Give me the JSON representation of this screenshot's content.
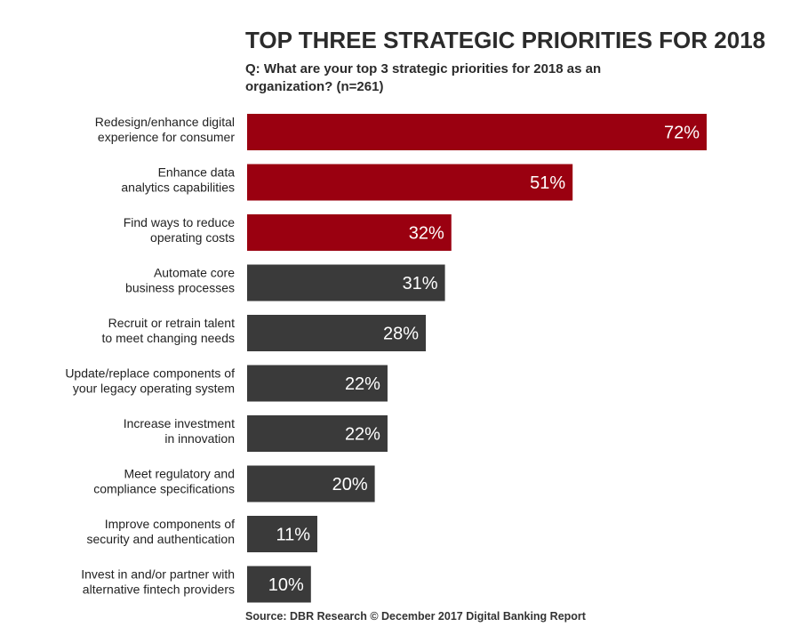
{
  "chart_data": {
    "type": "bar",
    "orientation": "horizontal",
    "title": "TOP THREE STRATEGIC PRIORITIES FOR 2018",
    "subtitle_lines": [
      "Q: What are your top 3 strategic priorities for 2018 as an",
      "organization? (n=261)"
    ],
    "categories": [
      [
        "Redesign/enhance digital",
        "experience for consumer"
      ],
      [
        "Enhance data",
        "analytics capabilities"
      ],
      [
        "Find ways to reduce",
        "operating costs"
      ],
      [
        "Automate core",
        "business processes"
      ],
      [
        "Recruit or retrain talent",
        "to meet changing needs"
      ],
      [
        "Update/replace components of",
        "your legacy operating system"
      ],
      [
        "Increase investment",
        "in innovation"
      ],
      [
        "Meet regulatory and",
        "compliance specifications"
      ],
      [
        "Improve components of",
        "security and authentication"
      ],
      [
        "Invest in and/or partner with",
        "alternative fintech providers"
      ]
    ],
    "values": [
      72,
      51,
      32,
      31,
      28,
      22,
      22,
      20,
      11,
      10
    ],
    "value_labels": [
      "72%",
      "51%",
      "32%",
      "31%",
      "28%",
      "22%",
      "22%",
      "20%",
      "11%",
      "10%"
    ],
    "highlight_count": 3,
    "colors": {
      "highlight": "#9a0010",
      "default": "#3a3a3a"
    },
    "xlim": [
      0,
      72
    ],
    "grid": false,
    "source": "Source: DBR Research © December 2017 Digital Banking Report"
  }
}
